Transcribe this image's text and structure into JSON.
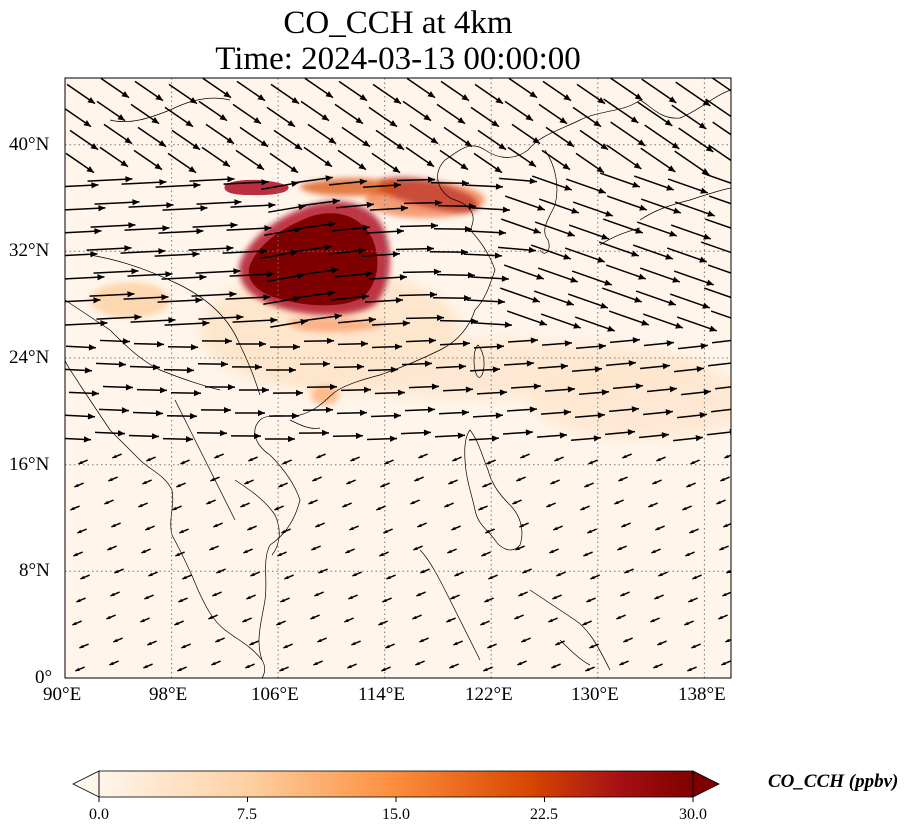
{
  "title": "CO_CCH at 4km",
  "subtitle": "Time: 2024-03-13 00:00:00",
  "axes": {
    "x_ticks": [
      "90°E",
      "98°E",
      "106°E",
      "114°E",
      "122°E",
      "130°E",
      "138°E"
    ],
    "y_ticks": [
      "40°N",
      "32°N",
      "24°N",
      "16°N",
      "8°N",
      "0°"
    ]
  },
  "colorbar": {
    "label": "CO_CCH (ppbv)",
    "ticks": [
      "0.0",
      "7.5",
      "15.0",
      "22.5",
      "30.0"
    ],
    "colors": [
      "#fff5eb",
      "#fdd0a2",
      "#fd8d3c",
      "#d94801",
      "#a50f15",
      "#7f0000"
    ]
  },
  "map_data": {
    "lon_range": [
      90,
      140
    ],
    "lat_range": [
      0,
      45
    ],
    "gridlines": true,
    "plume_color": "#7f0000"
  }
}
